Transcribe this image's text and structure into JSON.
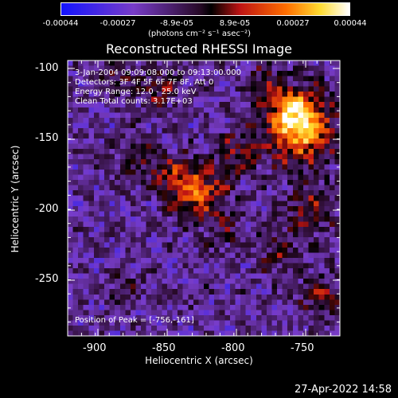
{
  "colorbar": {
    "ticks": [
      "-0.00044",
      "-0.00027",
      "-8.9e-05",
      "8.9e-05",
      "0.00027",
      "0.00044"
    ],
    "units": "(photons cm⁻² s⁻¹ asec⁻²)"
  },
  "title": "Reconstructed RHESSI Image",
  "info": {
    "line1": "3-Jan-2004 09:09:08.000 to 09:13:00.000",
    "line2": "Detectors: 3F 4F 5F 6F 7F 8F, Att 0",
    "line3": "Energy Range: 12.0 - 25.0 keV",
    "line4": "Clean     Total counts: 3.17E+03",
    "peak": "Position of Peak = [-756,-161]"
  },
  "axes": {
    "xlabel": "Heliocentric X (arcsec)",
    "ylabel": "Heliocentric Y (arcsec)",
    "xticks": [
      "-900",
      "-850",
      "-800",
      "-750"
    ],
    "yticks": [
      "-100",
      "-150",
      "-200",
      "-250"
    ]
  },
  "footer": "27-Apr-2022 14:58"
}
